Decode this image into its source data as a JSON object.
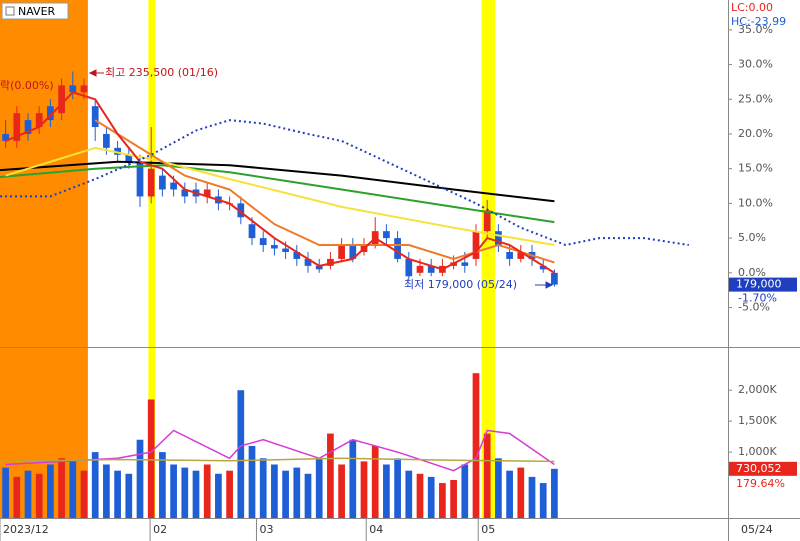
{
  "chart_data": {
    "type": "candlestick",
    "title": "NAVER",
    "lc_label": "LC:0.00",
    "hc_label": "HC:-23.99",
    "high_annotation": "최고 235,500 (01/16)",
    "low_annotation": "최저 179,000 (05/24)",
    "lock_annotation": "락(0.00%)",
    "price_label": "179,000",
    "change_label": "-1.70%",
    "volume_label": "730,052",
    "volume_change_label": "179.64%",
    "cursor_date": "05/24",
    "up_color": "#e8261c",
    "down_color": "#1f5fd6",
    "xlim": [
      -0.5,
      64.5
    ],
    "xticks": [
      {
        "value": -0.5,
        "label": "2023/12"
      },
      {
        "value": 12.9,
        "label": "02"
      },
      {
        "value": 22.4,
        "label": "03"
      },
      {
        "value": 32.2,
        "label": "04"
      },
      {
        "value": 42.2,
        "label": "05"
      }
    ],
    "ylim": [
      -10.4,
      39.3
    ],
    "yticks": [
      {
        "value": -5,
        "label": "-5.0%"
      },
      {
        "value": 0,
        "label": "0.0%"
      },
      {
        "value": 5,
        "label": "5.0%"
      },
      {
        "value": 10,
        "label": "10.0%"
      },
      {
        "value": 15,
        "label": "15.0%"
      },
      {
        "value": 20,
        "label": "20.0%"
      },
      {
        "value": 25,
        "label": "25.0%"
      },
      {
        "value": 30,
        "label": "30.0%"
      },
      {
        "value": 35,
        "label": "35.0%"
      }
    ],
    "highlights": [
      {
        "start": -0.5,
        "end": 7.35,
        "color": "#ff8c00"
      },
      {
        "start": 12.75,
        "end": 13.35,
        "color": "#ffff00"
      },
      {
        "start": 42.5,
        "end": 43.7,
        "color": "#ffff00"
      }
    ],
    "open": [
      20,
      19,
      22,
      21,
      24,
      23,
      27,
      26,
      24,
      20,
      18,
      17,
      16,
      11,
      14,
      13,
      12,
      12,
      11,
      11,
      10,
      10,
      7,
      5,
      4,
      3.5,
      3,
      2,
      1,
      1,
      2,
      4,
      3,
      4,
      6,
      5,
      2,
      0,
      1,
      0,
      1,
      1.5,
      2,
      6,
      6,
      3,
      2,
      3,
      1,
      0
    ],
    "high": [
      22,
      24,
      23,
      24,
      25,
      28,
      29,
      28,
      25,
      21,
      19,
      18,
      17,
      21,
      15,
      14,
      13,
      13,
      13,
      12,
      11,
      11,
      8,
      6,
      5,
      4.5,
      4,
      3,
      2,
      3,
      5,
      5,
      5,
      8,
      7,
      6,
      3,
      2,
      2,
      2,
      2.5,
      3,
      7,
      10.5,
      7,
      4,
      4,
      4,
      2,
      0.5
    ],
    "low": [
      18,
      18,
      19,
      20,
      21,
      22,
      25,
      25,
      19,
      17,
      16,
      15,
      9.5,
      10,
      11,
      11,
      10,
      10,
      10,
      9,
      9,
      7,
      4,
      3,
      2.5,
      2,
      1,
      0,
      0,
      0.5,
      1.5,
      1.5,
      2.5,
      3.5,
      4,
      1.5,
      -1,
      -0.5,
      -0.5,
      -0.5,
      0.5,
      0,
      1,
      5,
      3,
      1,
      1.5,
      1,
      0,
      -2
    ],
    "close": [
      19,
      23,
      20,
      23,
      22,
      27,
      26,
      27,
      21,
      18,
      17,
      16,
      11,
      15,
      12,
      12,
      11,
      11,
      12,
      10,
      10,
      8,
      5,
      4,
      3.5,
      3,
      2,
      1,
      0.5,
      2,
      4,
      2,
      4,
      6,
      5,
      2,
      -0.5,
      1,
      0,
      1,
      1.5,
      1,
      6,
      9,
      4,
      2,
      3,
      2,
      0.5,
      -1.7
    ],
    "lines": [
      {
        "color": "#000000",
        "width": 2,
        "x": [
          -0.5,
          10,
          20,
          30,
          40,
          49
        ],
        "values": [
          14.8,
          16.0,
          15.5,
          14.0,
          12.0,
          10.3
        ]
      },
      {
        "color": "#2ca02c",
        "width": 2,
        "x": [
          -0.5,
          8,
          14,
          20,
          30,
          40,
          49
        ],
        "values": [
          13.8,
          15.0,
          15.5,
          14.5,
          12.0,
          9.5,
          7.3
        ]
      },
      {
        "color": "#f5e23a",
        "width": 2,
        "x": [
          0,
          8,
          14,
          20,
          30,
          40,
          49
        ],
        "values": [
          14,
          18,
          16,
          13.5,
          9.5,
          6.5,
          4
        ]
      },
      {
        "color": "#f07a2a",
        "width": 2,
        "x": [
          8,
          12,
          16,
          20,
          24,
          28,
          32,
          36,
          40,
          44,
          49
        ],
        "values": [
          22,
          18,
          14,
          12,
          7,
          4,
          4,
          4,
          2,
          4,
          1.5
        ]
      },
      {
        "color": "#e8261c",
        "width": 2,
        "x": [
          0,
          3,
          6,
          8,
          10,
          12,
          14,
          16,
          20,
          24,
          28,
          31,
          33,
          36,
          39,
          42,
          43,
          45,
          47,
          49
        ],
        "values": [
          19,
          21,
          26,
          25,
          20,
          16,
          15,
          12,
          10,
          5,
          1,
          2,
          5,
          2,
          0.5,
          3,
          5,
          4,
          2,
          0
        ]
      },
      {
        "color": "#1f3fbf",
        "width": 2,
        "dash": "2 3",
        "x": [
          -0.5,
          4,
          8,
          13,
          17,
          20,
          23,
          27,
          30,
          34,
          38,
          42,
          46,
          50,
          53,
          57,
          61
        ],
        "values": [
          11,
          11,
          13.5,
          17,
          20.5,
          22,
          21.5,
          20,
          19,
          16,
          13,
          10,
          6.5,
          4,
          5,
          5,
          4
        ]
      }
    ],
    "volume": [
      750000,
      600000,
      700000,
      650000,
      800000,
      900000,
      850000,
      700000,
      1000000,
      800000,
      700000,
      650000,
      1200000,
      1850000,
      1000000,
      800000,
      750000,
      700000,
      800000,
      650000,
      700000,
      2000000,
      1100000,
      900000,
      800000,
      700000,
      750000,
      650000,
      900000,
      1300000,
      800000,
      1200000,
      850000,
      1100000,
      800000,
      900000,
      700000,
      650000,
      600000,
      500000,
      550000,
      800000,
      2275000,
      1300000,
      900000,
      700000,
      750000,
      600000,
      500000,
      730052
    ],
    "volume_ylim": [
      0,
      2650000
    ],
    "volume_ticks": [
      {
        "value": 1000000,
        "label": "1,000K"
      },
      {
        "value": 1500000,
        "label": "1,500K"
      },
      {
        "value": 2000000,
        "label": "2,000K"
      }
    ],
    "volume_lines": [
      {
        "color": "#d63bd6",
        "x": [
          0,
          5,
          10,
          13,
          15,
          20,
          21,
          23,
          28,
          31,
          35,
          40,
          42,
          43,
          45,
          49
        ],
        "values": [
          800000,
          850000,
          900000,
          1000000,
          1350000,
          900000,
          1100000,
          1200000,
          900000,
          1200000,
          1000000,
          700000,
          900000,
          1350000,
          1300000,
          800000
        ]
      },
      {
        "color": "#b8a640",
        "x": [
          -0.5,
          10,
          20,
          30,
          40,
          49
        ],
        "values": [
          850000,
          880000,
          860000,
          900000,
          870000,
          850000
        ]
      }
    ]
  }
}
